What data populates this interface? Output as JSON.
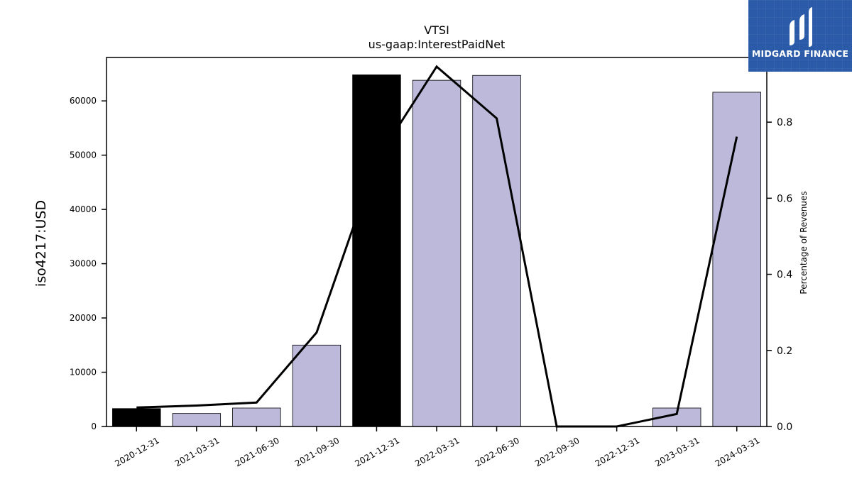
{
  "chart_data": {
    "type": "bar",
    "title": "VTSI",
    "subtitle": "us-gaap:InterestPaidNet",
    "ylabel": "iso4217:USD",
    "y2label": "Percentage of Revenues",
    "categories": [
      "2020-12-31",
      "2021-03-31",
      "2021-06-30",
      "2021-09-30",
      "2021-12-31",
      "2022-03-31",
      "2022-06-30",
      "2022-09-30",
      "2022-12-31",
      "2023-03-31",
      "2024-03-31"
    ],
    "values": [
      3300,
      2400,
      3400,
      15000,
      64800,
      63800,
      64700,
      0,
      0,
      3400,
      61600
    ],
    "bar_colors": [
      "#000000",
      "#bcb9da",
      "#bcb9da",
      "#bcb9da",
      "#000000",
      "#bcb9da",
      "#bcb9da",
      "#bcb9da",
      "#bcb9da",
      "#bcb9da",
      "#bcb9da"
    ],
    "line_series": {
      "name": "",
      "axis": "right",
      "values": [
        0.05,
        0.055,
        0.063,
        0.247,
        0.7,
        0.946,
        0.81,
        0.0,
        0.0,
        0.033,
        0.762
      ],
      "color": "#000000"
    },
    "ylim": [
      0,
      68000
    ],
    "y2lim": [
      0,
      0.97
    ],
    "yticks": [
      0,
      10000,
      20000,
      30000,
      40000,
      50000,
      60000
    ],
    "y2ticks": [
      "0.0",
      "0.2",
      "0.4",
      "0.6",
      "0.8"
    ],
    "grid": false,
    "legend": "none"
  },
  "logo": {
    "text": "MIDGARD FINANCE",
    "color": "#2b5aa8"
  }
}
